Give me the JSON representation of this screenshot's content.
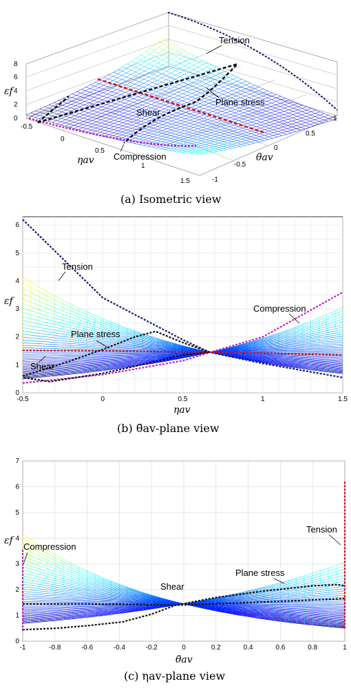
{
  "chart_data": [
    {
      "type": "surface",
      "caption": "(a)  Isometric  view",
      "zlabel": "εf",
      "xlabel": "ηav",
      "ylabel": "θ̄av",
      "x_ticks": [
        "-0.5",
        "0",
        "0.5",
        "1",
        "1.5"
      ],
      "y_ticks": [
        "-1",
        "-0.5",
        "0",
        "0.5",
        "1"
      ],
      "z_ticks": [
        "0",
        "2",
        "4",
        "6",
        "8"
      ],
      "xlim": [
        -0.5,
        1.5
      ],
      "ylim": [
        -1,
        1
      ],
      "zlim": [
        0,
        8
      ],
      "annotations": [
        "Tension",
        "Plane stress",
        "Shear",
        "Compression"
      ]
    },
    {
      "type": "line",
      "caption": "(b)  θ̄av-plane  view",
      "xlabel": "ηav",
      "ylabel": "εf",
      "xlim": [
        -0.5,
        1.5
      ],
      "ylim": [
        0,
        6.3
      ],
      "x_ticks": [
        "-0.5",
        "0",
        "0.5",
        "1",
        "1.5"
      ],
      "y_ticks": [
        "0",
        "1",
        "2",
        "3",
        "4",
        "5",
        "6"
      ],
      "series": [
        {
          "name": "Tension",
          "color": "#1a1a6e",
          "x": [
            -0.5,
            0,
            0.5,
            0.67,
            1,
            1.5
          ],
          "y": [
            6.2,
            3.4,
            1.9,
            1.45,
            1.05,
            0.55
          ]
        },
        {
          "name": "Compression",
          "color": "#c020c0",
          "x": [
            -0.5,
            0,
            0.5,
            0.67,
            1,
            1.5
          ],
          "y": [
            0.35,
            0.65,
            1.15,
            1.45,
            2.0,
            3.6
          ]
        },
        {
          "name": "Shear",
          "color": "#d01010",
          "x": [
            -0.5,
            0,
            0.5,
            1,
            1.5
          ],
          "y": [
            1.52,
            1.5,
            1.47,
            1.42,
            1.35
          ]
        },
        {
          "name": "Plane stress",
          "color": "#111111",
          "x": [
            -0.5,
            -0.33,
            -0.2,
            0,
            0.2,
            0.33,
            0.5,
            0.67,
            0.5,
            0.2,
            0,
            -0.33,
            -0.5
          ],
          "y": [
            0.6,
            0.9,
            1.15,
            1.55,
            2.0,
            2.2,
            1.8,
            1.45,
            1.35,
            0.95,
            0.7,
            0.4,
            0.55
          ]
        }
      ],
      "annotations": [
        "Tension",
        "Compression",
        "Plane stress",
        "Shear"
      ]
    },
    {
      "type": "line",
      "caption": "(c)  ηav-plane  view",
      "xlabel": "θ̄av",
      "ylabel": "εf",
      "xlim": [
        -1,
        1
      ],
      "ylim": [
        0,
        7
      ],
      "x_ticks": [
        "-1",
        "-0.8",
        "-0.6",
        "-0.4",
        "-0.2",
        "0",
        "0.2",
        "0.4",
        "0.6",
        "0.8",
        "1"
      ],
      "y_ticks": [
        "0",
        "1",
        "2",
        "3",
        "4",
        "5",
        "6",
        "7"
      ],
      "series": [
        {
          "name": "Shear",
          "color": "#111111",
          "x": [
            -1,
            -0.6,
            -0.2,
            -0.05,
            0.2,
            0.6,
            1
          ],
          "y": [
            1.45,
            1.45,
            1.42,
            1.4,
            1.45,
            1.55,
            1.65
          ]
        },
        {
          "name": "Plane stress",
          "color": "#111111",
          "x": [
            -1,
            -0.8,
            -0.6,
            -0.38,
            -0.2,
            -0.05,
            0.2,
            0.5,
            0.8,
            0.95,
            1
          ],
          "y": [
            0.45,
            0.5,
            0.6,
            0.75,
            1.05,
            1.4,
            1.7,
            1.95,
            2.15,
            2.2,
            2.15
          ]
        },
        {
          "name": "Tension",
          "color": "#d01010",
          "x": [
            1,
            1
          ],
          "y": [
            0.5,
            6.2
          ]
        },
        {
          "name": "Compression",
          "color": "#c020c0",
          "x": [
            -1,
            -1
          ],
          "y": [
            0.4,
            3.6
          ]
        }
      ],
      "annotations": [
        "Compression",
        "Shear",
        "Plane stress",
        "Tension"
      ]
    }
  ]
}
